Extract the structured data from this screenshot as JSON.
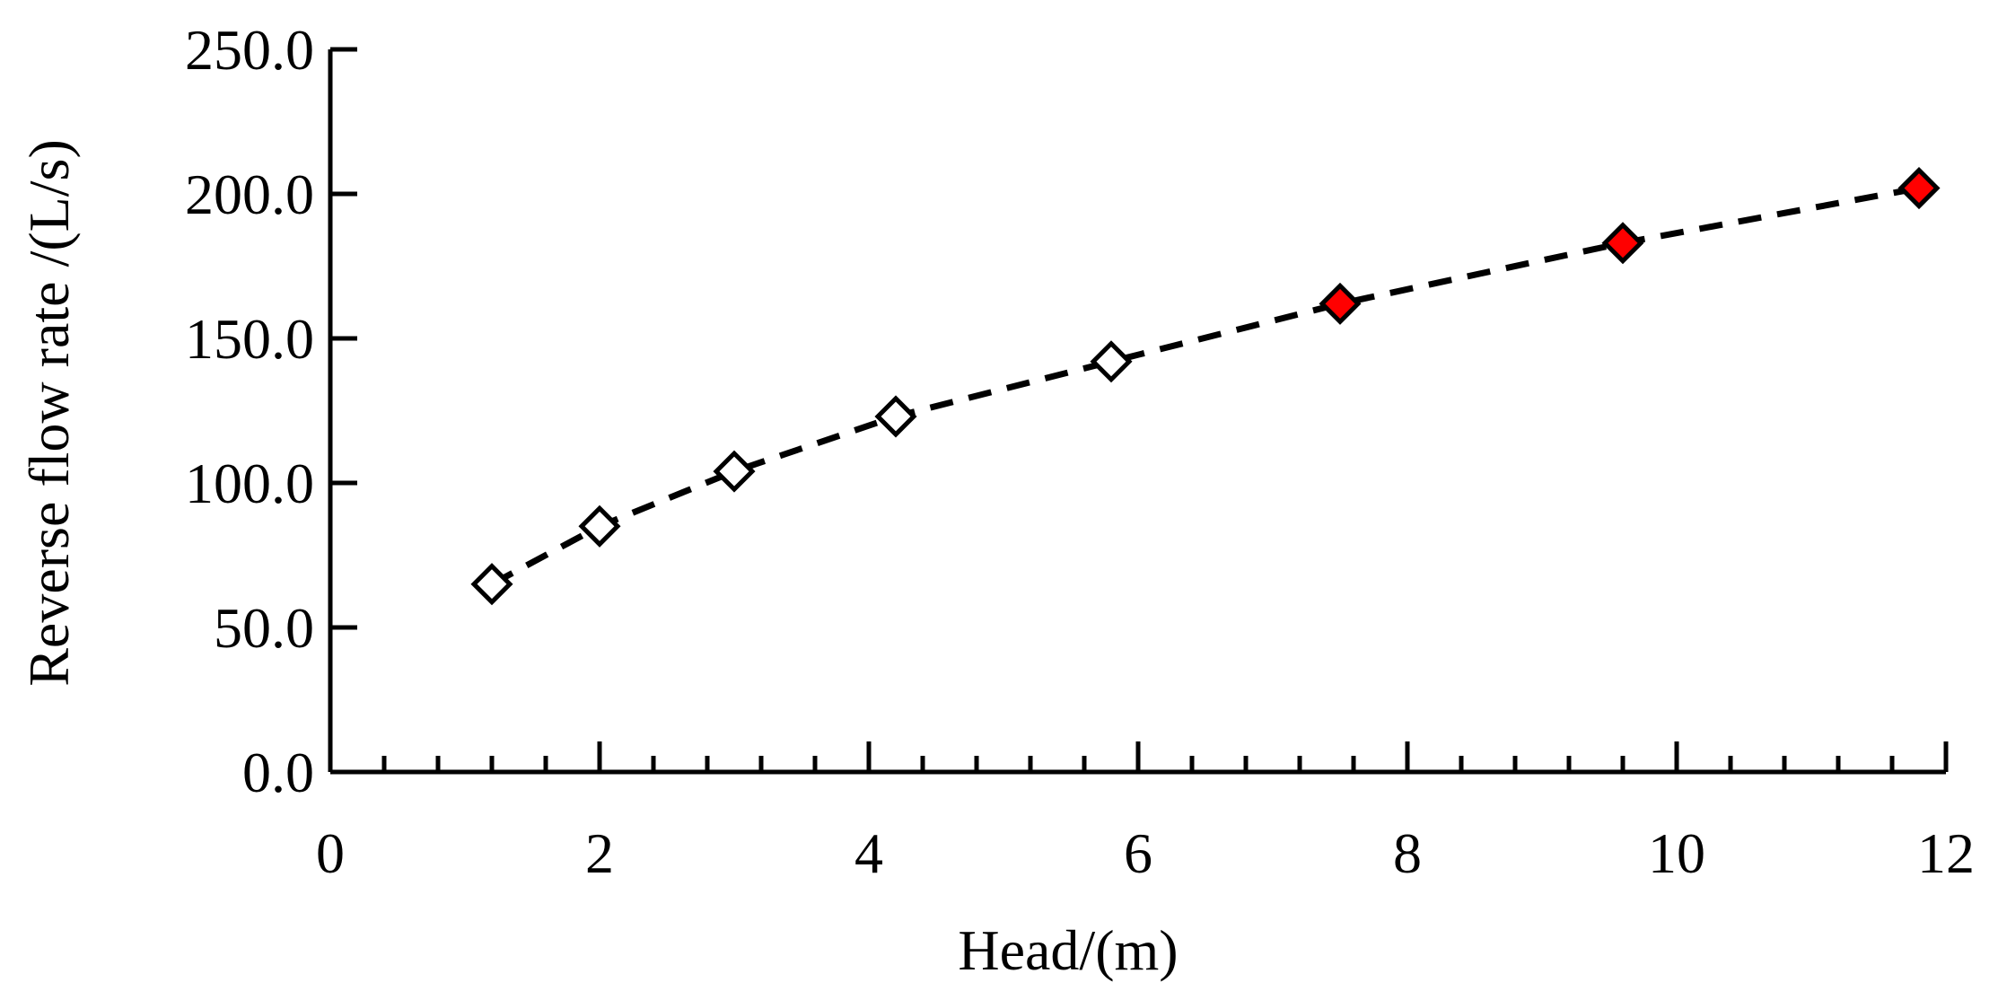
{
  "chart_data": {
    "type": "scatter",
    "xlabel": "Head/(m)",
    "ylabel": "Reverse flow rate /(L/s)",
    "xlim": [
      0,
      12
    ],
    "ylim": [
      0,
      250
    ],
    "x_ticks": [
      0,
      2,
      4,
      6,
      8,
      10,
      12
    ],
    "x_tick_labels": [
      "0",
      "2",
      "4",
      "6",
      "8",
      "10",
      "12"
    ],
    "x_minor_step": 0.4,
    "y_ticks": [
      0,
      50,
      100,
      150,
      200,
      250
    ],
    "y_tick_labels": [
      "0.0",
      "50.0",
      "100.0",
      "150.0",
      "200.0",
      "250.0"
    ],
    "grid": false,
    "legend": "none",
    "line_style": "dashed",
    "colors": {
      "line": "#000000",
      "open_marker_fill": "#ffffff",
      "filled_marker": "#ff0000",
      "axis": "#000000"
    },
    "series": [
      {
        "marker": "diamond-open",
        "x": [
          1.2,
          2.0,
          3.0,
          4.2,
          5.8
        ],
        "y": [
          65,
          85,
          104,
          123,
          142
        ]
      },
      {
        "marker": "diamond-filled",
        "x": [
          7.5,
          9.6,
          11.8
        ],
        "y": [
          162,
          183,
          202
        ]
      }
    ]
  }
}
